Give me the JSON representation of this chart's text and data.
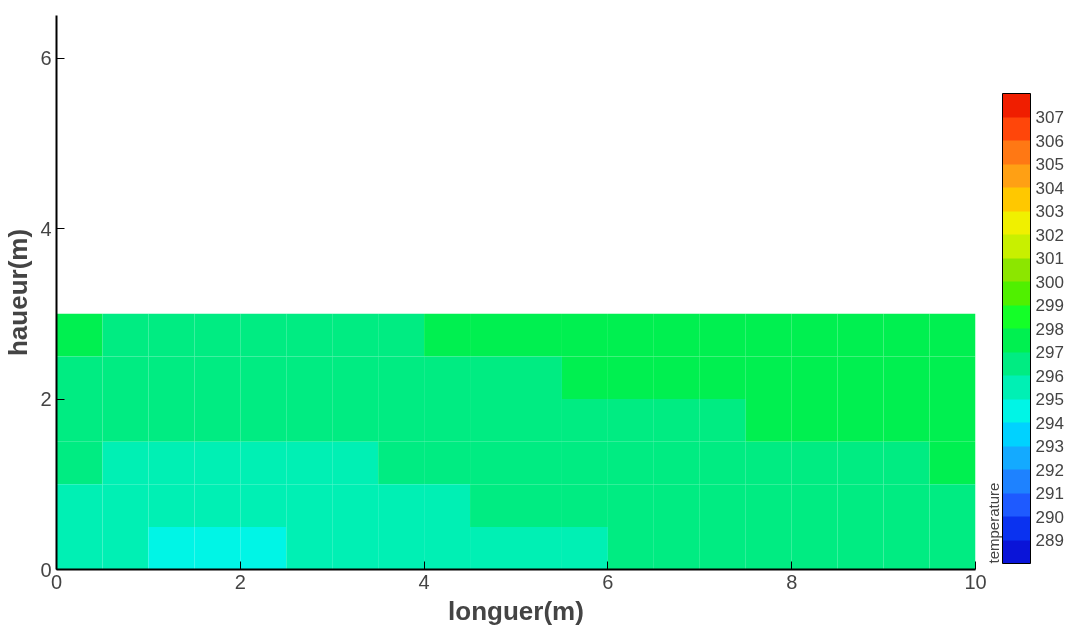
{
  "chart_data": {
    "type": "heatmap",
    "xlabel": "longuer(m)",
    "ylabel": "haueur(m)",
    "clabel": "temperature",
    "x": [
      0.25,
      0.75,
      1.25,
      1.75,
      2.25,
      2.75,
      3.25,
      3.75,
      4.25,
      4.75,
      5.25,
      5.75,
      6.25,
      6.75,
      7.25,
      7.75,
      8.25,
      8.75,
      9.25,
      9.75
    ],
    "y": [
      2.75,
      2.25,
      1.75,
      1.25,
      0.75,
      0.25
    ],
    "cells": [
      [
        297.5,
        296.5,
        296.5,
        296.5,
        296.5,
        296.5,
        296.5,
        296.5,
        297.5,
        297.5,
        297.5,
        297.5,
        297.5,
        297.5,
        297.5,
        297.5,
        297.5,
        297.5,
        297.5,
        297.5
      ],
      [
        296.5,
        296.5,
        296.5,
        296.5,
        296.5,
        296.5,
        296.5,
        296.5,
        296.5,
        296.5,
        296.5,
        297.5,
        297.5,
        297.5,
        297.5,
        297.5,
        297.5,
        297.5,
        297.5,
        297.5
      ],
      [
        296.5,
        296.5,
        296.5,
        296.5,
        296.5,
        296.5,
        296.5,
        296.5,
        296.5,
        296.5,
        296.5,
        296.5,
        296.5,
        296.5,
        296.5,
        297.5,
        297.5,
        297.5,
        297.5,
        297.5
      ],
      [
        296.5,
        295.5,
        295.5,
        295.5,
        295.5,
        295.5,
        295.5,
        296.5,
        296.5,
        296.5,
        296.5,
        296.5,
        296.5,
        296.5,
        296.5,
        296.5,
        296.5,
        296.5,
        296.5,
        297.5
      ],
      [
        295.5,
        295.5,
        295.5,
        295.5,
        295.5,
        295.5,
        295.5,
        295.5,
        295.5,
        296.5,
        296.5,
        296.5,
        296.5,
        296.5,
        296.5,
        296.5,
        296.5,
        296.5,
        296.5,
        296.5
      ],
      [
        295.5,
        295.5,
        294.5,
        294.5,
        294.5,
        295.5,
        295.5,
        295.5,
        295.5,
        295.5,
        295.5,
        295.5,
        296.5,
        296.5,
        296.5,
        296.5,
        296.5,
        296.5,
        296.5,
        296.5
      ]
    ],
    "xlim": [
      0,
      10
    ],
    "xticks": [
      0,
      2,
      4,
      6,
      8,
      10
    ],
    "ylim": [
      0,
      6.5
    ],
    "yticks": [
      0,
      2,
      4,
      6
    ],
    "clim": [
      288,
      308
    ],
    "cticks": [
      289,
      290,
      291,
      292,
      293,
      294,
      295,
      296,
      297,
      298,
      299,
      300,
      301,
      302,
      303,
      304,
      305,
      306,
      307
    ]
  }
}
